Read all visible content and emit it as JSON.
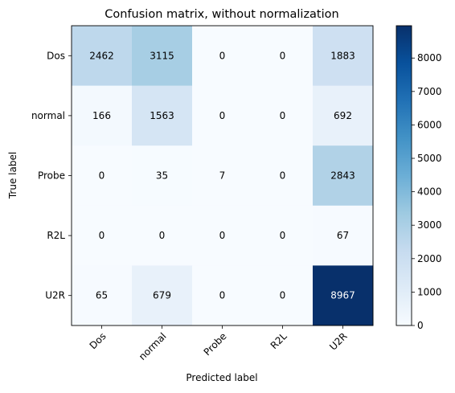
{
  "chart_data": {
    "type": "heatmap",
    "title": "Confusion matrix, without normalization",
    "xlabel": "Predicted label",
    "ylabel": "True label",
    "x_categories": [
      "Dos",
      "normal",
      "Probe",
      "R2L",
      "U2R"
    ],
    "y_categories": [
      "Dos",
      "normal",
      "Probe",
      "R2L",
      "U2R"
    ],
    "values": [
      [
        2462,
        3115,
        0,
        0,
        1883
      ],
      [
        166,
        1563,
        0,
        0,
        692
      ],
      [
        0,
        35,
        7,
        0,
        2843
      ],
      [
        0,
        0,
        0,
        0,
        67
      ],
      [
        65,
        679,
        0,
        0,
        8967
      ]
    ],
    "colormap": "Blues",
    "colorbar": {
      "range": [
        0,
        8967
      ],
      "ticks": [
        0,
        1000,
        2000,
        3000,
        4000,
        5000,
        6000,
        7000,
        8000
      ]
    },
    "colors": {
      "low": "#f7fbff",
      "high": "#08306b",
      "text_dark": "#000000",
      "text_light": "#ffffff"
    }
  }
}
